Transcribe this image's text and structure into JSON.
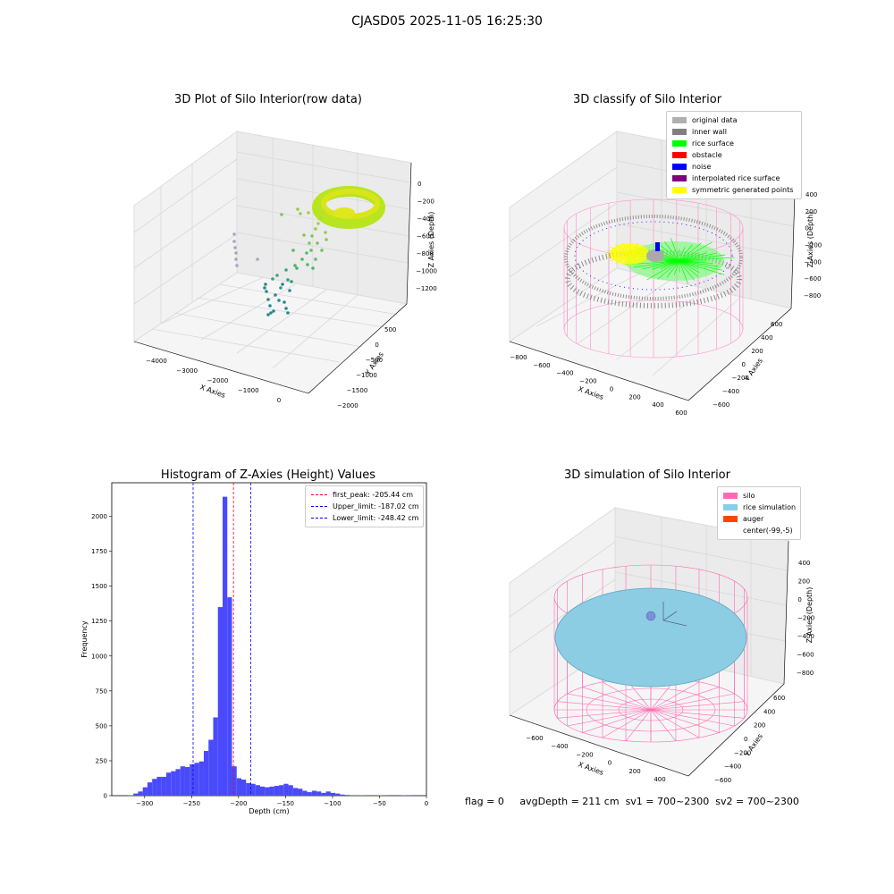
{
  "suptitle": "CJASD05 2025-11-05 16:25:30",
  "chart_data": [
    {
      "type": "scatter",
      "projection": "3d",
      "title": "3D Plot of Silo Interior(row data)",
      "xlabel": "X Axies",
      "ylabel": "Y Axies",
      "zlabel": "Z Axies (Depth)",
      "x_ticks": [
        "−4000",
        "−3000",
        "−2000",
        "−1000",
        "0"
      ],
      "y_ticks": [
        "500",
        "0",
        "−500",
        "−1000",
        "−1500",
        "−2000"
      ],
      "z_ticks": [
        "0",
        "−200",
        "−400",
        "−600",
        "−800",
        "−1000",
        "−1200"
      ],
      "colormap": "viridis"
    },
    {
      "type": "scatter",
      "projection": "3d",
      "title": "3D classify of Silo Interior",
      "xlabel": "X Axies",
      "ylabel": "Y Axies",
      "zlabel": "Z Axies (Depth)",
      "x_ticks": [
        "−800",
        "−600",
        "−400",
        "−200",
        "0",
        "200",
        "400",
        "600"
      ],
      "y_ticks": [
        "600",
        "400",
        "200",
        "0",
        "−200",
        "−400",
        "−600"
      ],
      "z_ticks": [
        "400",
        "200",
        "0",
        "−200",
        "−400",
        "−600",
        "−800"
      ],
      "legend": [
        {
          "label": "original data",
          "color": "#b0b0b0"
        },
        {
          "label": "inner wall",
          "color": "#808080"
        },
        {
          "label": "rice surface",
          "color": "#00ff00"
        },
        {
          "label": "obstacle",
          "color": "#ff0000"
        },
        {
          "label": "noise",
          "color": "#0000ff"
        },
        {
          "label": "interpolated rice surface",
          "color": "#800080"
        },
        {
          "label": "symmetric generated points",
          "color": "#ffff00"
        }
      ]
    },
    {
      "type": "bar",
      "title": "Histogram of Z-Axies (Height) Values",
      "xlabel": "Depth (cm)",
      "ylabel": "Frequency",
      "xlim": [
        -335,
        0
      ],
      "ylim": [
        0,
        2240
      ],
      "x_ticks": [
        -300,
        -250,
        -200,
        -150,
        -100,
        -50,
        0
      ],
      "y_ticks": [
        0,
        250,
        500,
        750,
        1000,
        1250,
        1500,
        1750,
        2000
      ],
      "bar_color": "#4a4afd",
      "bins": [
        {
          "x0": -317,
          "x1": -312,
          "v": 3
        },
        {
          "x0": -312,
          "x1": -307,
          "v": 15
        },
        {
          "x0": -307,
          "x1": -302,
          "v": 30
        },
        {
          "x0": -302,
          "x1": -297,
          "v": 60
        },
        {
          "x0": -297,
          "x1": -292,
          "v": 95
        },
        {
          "x0": -292,
          "x1": -287,
          "v": 120
        },
        {
          "x0": -287,
          "x1": -282,
          "v": 135
        },
        {
          "x0": -282,
          "x1": -277,
          "v": 135
        },
        {
          "x0": -277,
          "x1": -272,
          "v": 165
        },
        {
          "x0": -272,
          "x1": -267,
          "v": 175
        },
        {
          "x0": -267,
          "x1": -262,
          "v": 190
        },
        {
          "x0": -262,
          "x1": -257,
          "v": 210
        },
        {
          "x0": -257,
          "x1": -252,
          "v": 205
        },
        {
          "x0": -252,
          "x1": -247,
          "v": 225
        },
        {
          "x0": -247,
          "x1": -242,
          "v": 235
        },
        {
          "x0": -242,
          "x1": -237,
          "v": 245
        },
        {
          "x0": -237,
          "x1": -232,
          "v": 320
        },
        {
          "x0": -232,
          "x1": -227,
          "v": 400
        },
        {
          "x0": -227,
          "x1": -222,
          "v": 560
        },
        {
          "x0": -222,
          "x1": -217,
          "v": 1350
        },
        {
          "x0": -217,
          "x1": -212,
          "v": 2140
        },
        {
          "x0": -212,
          "x1": -207,
          "v": 1420
        },
        {
          "x0": -207,
          "x1": -202,
          "v": 210
        },
        {
          "x0": -202,
          "x1": -197,
          "v": 125
        },
        {
          "x0": -197,
          "x1": -192,
          "v": 115
        },
        {
          "x0": -192,
          "x1": -187,
          "v": 90
        },
        {
          "x0": -187,
          "x1": -182,
          "v": 85
        },
        {
          "x0": -182,
          "x1": -177,
          "v": 75
        },
        {
          "x0": -177,
          "x1": -172,
          "v": 65
        },
        {
          "x0": -172,
          "x1": -167,
          "v": 60
        },
        {
          "x0": -167,
          "x1": -162,
          "v": 65
        },
        {
          "x0": -162,
          "x1": -157,
          "v": 70
        },
        {
          "x0": -157,
          "x1": -152,
          "v": 75
        },
        {
          "x0": -152,
          "x1": -147,
          "v": 85
        },
        {
          "x0": -147,
          "x1": -142,
          "v": 75
        },
        {
          "x0": -142,
          "x1": -137,
          "v": 55
        },
        {
          "x0": -137,
          "x1": -132,
          "v": 50
        },
        {
          "x0": -132,
          "x1": -127,
          "v": 35
        },
        {
          "x0": -127,
          "x1": -122,
          "v": 25
        },
        {
          "x0": -122,
          "x1": -117,
          "v": 35
        },
        {
          "x0": -117,
          "x1": -112,
          "v": 30
        },
        {
          "x0": -112,
          "x1": -107,
          "v": 20
        },
        {
          "x0": -107,
          "x1": -102,
          "v": 30
        },
        {
          "x0": -102,
          "x1": -97,
          "v": 20
        },
        {
          "x0": -97,
          "x1": -92,
          "v": 15
        },
        {
          "x0": -92,
          "x1": -87,
          "v": 8
        },
        {
          "x0": -87,
          "x1": -82,
          "v": 5
        },
        {
          "x0": -82,
          "x1": -77,
          "v": 2
        },
        {
          "x0": -77,
          "x1": -72,
          "v": 2
        },
        {
          "x0": -72,
          "x1": -67,
          "v": 3
        },
        {
          "x0": -67,
          "x1": -62,
          "v": 2
        },
        {
          "x0": -62,
          "x1": -57,
          "v": 1
        },
        {
          "x0": -57,
          "x1": -52,
          "v": 1
        },
        {
          "x0": -52,
          "x1": -47,
          "v": 3
        },
        {
          "x0": -47,
          "x1": -42,
          "v": 2
        },
        {
          "x0": -27,
          "x1": -22,
          "v": 3
        },
        {
          "x0": -22,
          "x1": -17,
          "v": 2
        }
      ],
      "vlines": [
        {
          "label": "first_peak: -205.44 cm",
          "x": -205.44,
          "color": "#ff0000"
        },
        {
          "label": "Upper_limit: -187.02 cm",
          "x": -187.02,
          "color": "#0000ff"
        },
        {
          "label": "Lower_limit: -248.42 cm",
          "x": -248.42,
          "color": "#0000ff"
        }
      ]
    },
    {
      "type": "scatter",
      "projection": "3d",
      "title": "3D simulation of Silo Interior",
      "xlabel": "X Axies",
      "ylabel": "Y Axies",
      "zlabel": "Z Axies (Depth)",
      "x_ticks": [
        "−600",
        "−400",
        "−200",
        "0",
        "200",
        "400"
      ],
      "y_ticks": [
        "600",
        "400",
        "200",
        "0",
        "−200",
        "−400",
        "−600"
      ],
      "z_ticks": [
        "400",
        "200",
        "0",
        "−200",
        "−400",
        "−600",
        "−800"
      ],
      "legend": [
        {
          "label": "silo",
          "color": "#ff69b4"
        },
        {
          "label": "rice simulation",
          "color": "#87ceeb"
        },
        {
          "label": "auger",
          "color": "#ff4500"
        },
        {
          "label": "center(-99,-5)",
          "color": "#ffffff"
        }
      ]
    }
  ],
  "status": {
    "flag": "flag = 0",
    "avg_depth": "avgDepth = 211 cm",
    "sv1": "sv1 = 700~2300",
    "sv2": "sv2 = 700~2300"
  }
}
